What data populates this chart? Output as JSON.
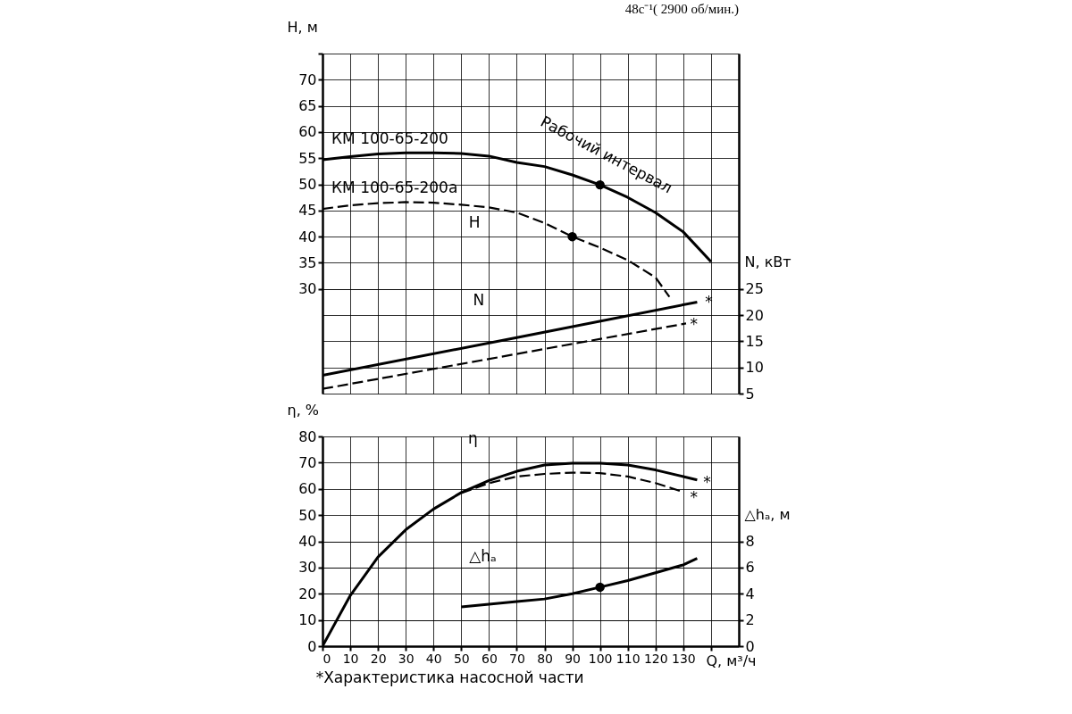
{
  "chart_data": [
    {
      "type": "line",
      "title": "48с⁻¹( 2900 об/мин.)",
      "ylabel": "H, м",
      "y2label": "N, кВт",
      "xlim": [
        0,
        150
      ],
      "xticks": [
        0,
        10,
        20,
        30,
        40,
        50,
        60,
        70,
        80,
        90,
        100,
        110,
        120,
        130,
        {
          "value": 140,
          "label": null
        }
      ],
      "ylim": [
        10,
        75
      ],
      "yticks": [
        30,
        35,
        40,
        45,
        50,
        55,
        60,
        65,
        70,
        {
          "value": 75,
          "label": null
        }
      ],
      "y2lim": [
        5,
        70
      ],
      "y2ticks": [
        5,
        10,
        15,
        20,
        25
      ],
      "grid": true,
      "tick_labels": "y",
      "series": [
        {
          "name": "КМ 100-65-200",
          "color": "#000000",
          "line_style": "solid",
          "x": [
            0,
            10,
            20,
            30,
            40,
            50,
            60,
            70,
            80,
            90,
            100,
            110,
            120,
            130,
            140
          ],
          "values": [
            54.7,
            55.3,
            55.8,
            56,
            56,
            55.9,
            55.4,
            54.2,
            53.4,
            51.8,
            49.9,
            47.5,
            44.6,
            40.9,
            35.2
          ]
        },
        {
          "name": "КМ 100-65-200а",
          "color": "#000000",
          "line_style": "dashed",
          "x": [
            0,
            10,
            20,
            30,
            40,
            50,
            60,
            70,
            80,
            90,
            100,
            110,
            120,
            125
          ],
          "values": [
            45.3,
            46,
            46.4,
            46.6,
            46.5,
            46.1,
            45.6,
            44.6,
            42.6,
            40,
            37.9,
            35.5,
            32.2,
            28.5
          ]
        },
        {
          "type": "scatter",
          "color": "#000000",
          "marker": "circle",
          "x": [
            100,
            90
          ],
          "values": [
            49.9,
            40
          ]
        },
        {
          "color": "#000000",
          "axis": "y2",
          "line_style": "solid",
          "x": [
            0,
            70,
            135
          ],
          "values": [
            8.5,
            15.7,
            22.5
          ]
        },
        {
          "color": "#000000",
          "axis": "y2",
          "line_style": "dashed",
          "x": [
            0,
            131
          ],
          "values": [
            5.9,
            18.4
          ]
        }
      ],
      "annotations": [
        "Рабочий интервал",
        "H",
        "N",
        "*",
        "*"
      ]
    },
    {
      "type": "line",
      "xlabel": "Q, м³/ч",
      "ylabel": "η, %",
      "y2label": "△hₐ, м",
      "xlim": [
        0,
        150
      ],
      "xticks": [
        0,
        10,
        20,
        30,
        40,
        50,
        60,
        70,
        80,
        90,
        100,
        110,
        120,
        130,
        {
          "value": 140,
          "label": null
        }
      ],
      "ylim": [
        0,
        80
      ],
      "yticks": [
        0,
        10,
        20,
        30,
        40,
        50,
        60,
        70,
        80
      ],
      "y2lim": [
        0,
        16
      ],
      "y2ticks": [
        0,
        2,
        4,
        6,
        8
      ],
      "grid": true,
      "series": [
        {
          "color": "#000000",
          "line_style": "solid",
          "x": [
            0,
            10,
            20,
            30,
            40,
            50,
            60,
            70,
            80,
            90,
            100,
            110,
            120,
            130,
            135
          ],
          "values": [
            0,
            19.3,
            34,
            44.4,
            52.3,
            58.6,
            63.2,
            66.7,
            69.1,
            69.8,
            69.8,
            69.1,
            67.2,
            64.7,
            63.4
          ]
        },
        {
          "color": "#000000",
          "line_style": "dashed",
          "x": [
            50,
            60,
            70,
            80,
            90,
            100,
            110,
            120,
            130
          ],
          "values": [
            58.4,
            62.2,
            64.7,
            65.7,
            66.2,
            66,
            64.7,
            62.2,
            58.8
          ]
        },
        {
          "color": "#000000",
          "axis": "y2",
          "line_style": "solid",
          "x": [
            50,
            60,
            70,
            80,
            90,
            100,
            110,
            120,
            130,
            135
          ],
          "values": [
            3.0,
            3.2,
            3.4,
            3.6,
            4.0,
            4.5,
            5.0,
            5.6,
            6.2,
            6.7
          ]
        },
        {
          "type": "scatter",
          "color": "#000000",
          "axis": "y2",
          "marker": "circle",
          "x": [
            100
          ],
          "values": [
            4.5
          ]
        }
      ],
      "annotations": [
        "η",
        "△hₐ",
        "*",
        "*",
        "*Характеристика насосной части"
      ]
    }
  ]
}
